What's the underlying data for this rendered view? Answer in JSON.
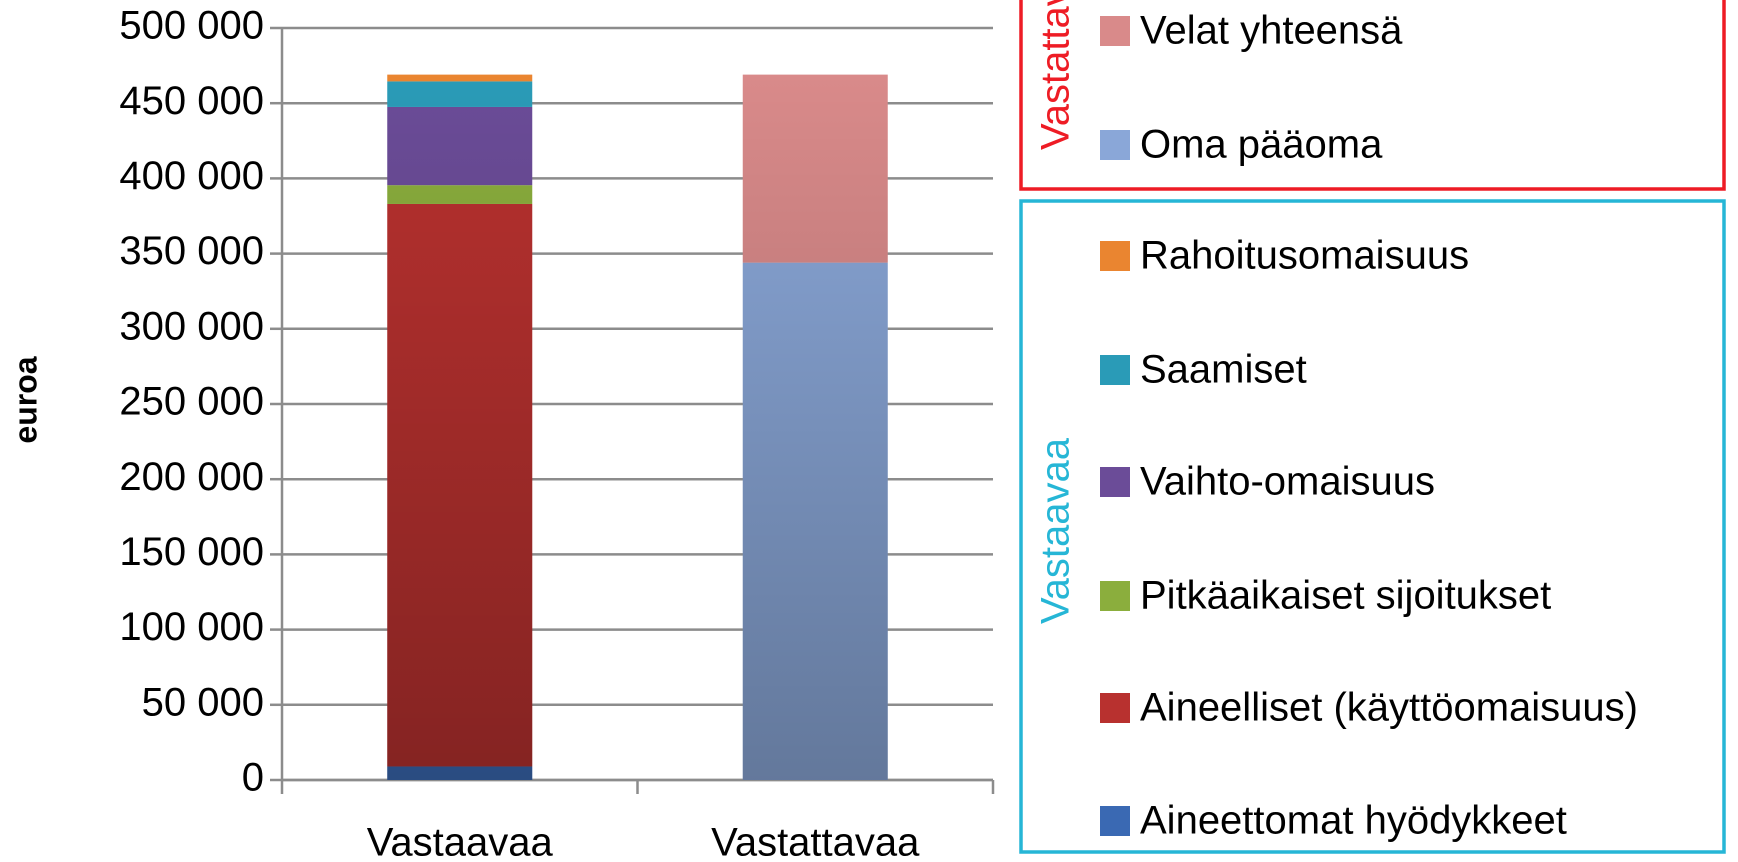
{
  "chart_data": {
    "type": "stacked_bar",
    "y_label": "euroa",
    "categories": [
      "Vastaavaa",
      "Vastattavaa"
    ],
    "series": [
      {
        "name": "Aineettomat hyödykkeet",
        "color": "#3a69b3",
        "values": [
          9000,
          null
        ]
      },
      {
        "name": "Aineelliset (käyttöomaisuus)",
        "color": "#b8312f",
        "values": [
          374000,
          null
        ]
      },
      {
        "name": "Pitkäaikaiset sijoitukset",
        "color": "#8bae3d",
        "values": [
          12500,
          null
        ]
      },
      {
        "name": "Vaihto-omaisuus",
        "color": "#6b4c98",
        "values": [
          52000,
          null
        ]
      },
      {
        "name": "Saamiset",
        "color": "#2a9bb7",
        "values": [
          17000,
          null
        ]
      },
      {
        "name": "Rahoitusomaisuus",
        "color": "#ea8530",
        "values": [
          4500,
          null
        ]
      },
      {
        "name": "Oma pääoma",
        "color": "#8aa7d8",
        "values": [
          null,
          344000
        ]
      },
      {
        "name": "Velat yhteensä",
        "color": "#d98a8a",
        "values": [
          null,
          125000
        ]
      }
    ],
    "ylim": [
      0,
      500000
    ],
    "yticks": [
      {
        "value": 0,
        "label": "0"
      },
      {
        "value": 50000,
        "label": "50 000"
      },
      {
        "value": 100000,
        "label": "100 000"
      },
      {
        "value": 150000,
        "label": "150 000"
      },
      {
        "value": 200000,
        "label": "200 000"
      },
      {
        "value": 250000,
        "label": "250 000"
      },
      {
        "value": 300000,
        "label": "300 000"
      },
      {
        "value": 350000,
        "label": "350 000"
      },
      {
        "value": 400000,
        "label": "400 000"
      },
      {
        "value": 450000,
        "label": "450 000"
      },
      {
        "value": 500000,
        "label": "500 000"
      }
    ],
    "grid": true
  }
}
